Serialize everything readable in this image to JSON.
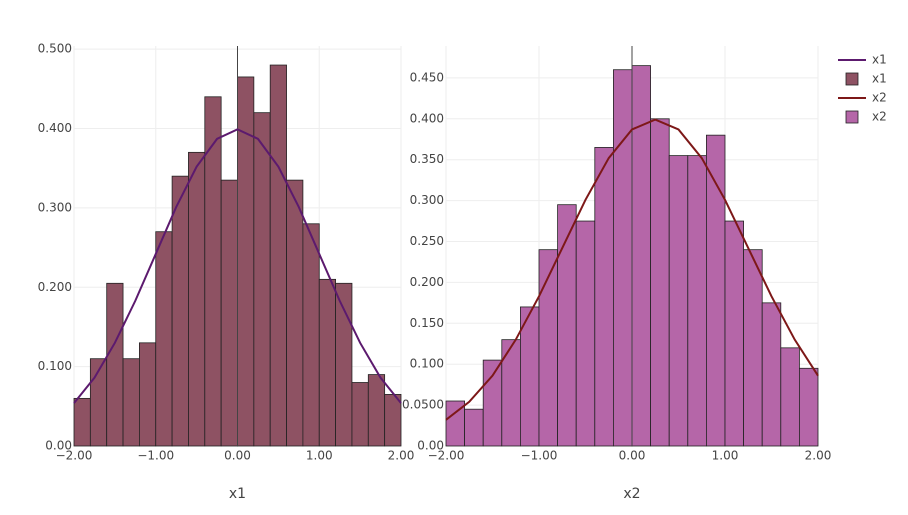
{
  "chart_data": [
    {
      "type": "histogram",
      "x_label": "x1",
      "bins": [
        -2,
        -1.8,
        -1.6,
        -1.4,
        -1.2,
        -1,
        -0.8,
        -0.6,
        -0.4,
        -0.2,
        0,
        0.2,
        0.4,
        0.6,
        0.8,
        1,
        1.2,
        1.4,
        1.6,
        1.8,
        2
      ],
      "xlim": [
        -2,
        2
      ],
      "xticks": [
        {
          "value": -2,
          "label": "−2.00"
        },
        {
          "value": -1,
          "label": "−1.00"
        },
        {
          "value": 0,
          "label": "0.00"
        },
        {
          "value": 1,
          "label": "1.00"
        },
        {
          "value": 2,
          "label": "2.00"
        }
      ],
      "ylim": [
        0,
        0.504
      ],
      "yticks": [
        {
          "value": 0,
          "label": "0.00"
        },
        {
          "value": 0.1,
          "label": "0.100"
        },
        {
          "value": 0.2,
          "label": "0.200"
        },
        {
          "value": 0.3,
          "label": "0.300"
        },
        {
          "value": 0.4,
          "label": "0.400"
        },
        {
          "value": 0.5,
          "label": "0.500"
        }
      ],
      "grid": true,
      "series": [
        {
          "name": "x1",
          "type": "line",
          "color": "#5c1a6e",
          "x": [
            -2,
            -1.75,
            -1.5,
            -1.25,
            -1,
            -0.75,
            -0.5,
            -0.25,
            0,
            0.25,
            0.5,
            0.75,
            1,
            1.25,
            1.5,
            1.75,
            2
          ],
          "values": [
            0.054,
            0.086,
            0.13,
            0.183,
            0.242,
            0.301,
            0.352,
            0.387,
            0.399,
            0.387,
            0.352,
            0.301,
            0.242,
            0.183,
            0.13,
            0.086,
            0.054
          ]
        },
        {
          "name": "x1",
          "type": "histogram",
          "color": "#8e5263",
          "values": [
            0.06,
            0.11,
            0.205,
            0.11,
            0.13,
            0.27,
            0.34,
            0.37,
            0.44,
            0.335,
            0.465,
            0.42,
            0.48,
            0.335,
            0.28,
            0.21,
            0.205,
            0.08,
            0.09,
            0.065
          ]
        }
      ]
    },
    {
      "type": "histogram",
      "x_label": "x2",
      "bins": [
        -2,
        -1.8,
        -1.6,
        -1.4,
        -1.2,
        -1,
        -0.8,
        -0.6,
        -0.4,
        -0.2,
        0,
        0.2,
        0.4,
        0.6,
        0.8,
        1,
        1.2,
        1.4,
        1.6,
        1.8,
        2
      ],
      "xlim": [
        -2,
        2
      ],
      "xticks": [
        {
          "value": -2,
          "label": "−2.00"
        },
        {
          "value": -1,
          "label": "−1.00"
        },
        {
          "value": 0,
          "label": "0.00"
        },
        {
          "value": 1,
          "label": "1.00"
        },
        {
          "value": 2,
          "label": "2.00"
        }
      ],
      "ylim": [
        0,
        0.489
      ],
      "yticks": [
        {
          "value": 0,
          "label": "0.00"
        },
        {
          "value": 0.05,
          "label": "0.0500"
        },
        {
          "value": 0.1,
          "label": "0.100"
        },
        {
          "value": 0.15,
          "label": "0.150"
        },
        {
          "value": 0.2,
          "label": "0.200"
        },
        {
          "value": 0.25,
          "label": "0.250"
        },
        {
          "value": 0.3,
          "label": "0.300"
        },
        {
          "value": 0.35,
          "label": "0.350"
        },
        {
          "value": 0.4,
          "label": "0.400"
        },
        {
          "value": 0.45,
          "label": "0.450"
        }
      ],
      "grid": true,
      "series": [
        {
          "name": "x2",
          "type": "line",
          "color": "#7d1818",
          "x": [
            -2,
            -1.75,
            -1.5,
            -1.25,
            -1,
            -0.75,
            -0.5,
            -0.25,
            0,
            0.25,
            0.5,
            0.75,
            1,
            1.25,
            1.5,
            1.75,
            2
          ],
          "values": [
            0.032,
            0.054,
            0.086,
            0.13,
            0.183,
            0.242,
            0.301,
            0.352,
            0.387,
            0.399,
            0.387,
            0.352,
            0.301,
            0.242,
            0.183,
            0.13,
            0.086
          ]
        },
        {
          "name": "x2",
          "type": "histogram",
          "color": "#b566a8",
          "values": [
            0.055,
            0.045,
            0.105,
            0.13,
            0.17,
            0.24,
            0.295,
            0.275,
            0.365,
            0.46,
            0.465,
            0.4,
            0.355,
            0.355,
            0.38,
            0.275,
            0.24,
            0.175,
            0.12,
            0.095
          ]
        }
      ]
    }
  ]
}
